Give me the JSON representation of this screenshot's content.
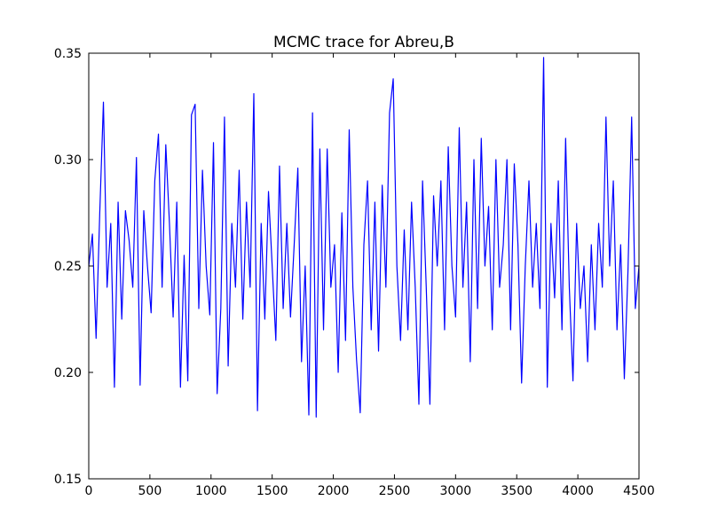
{
  "chart_data": {
    "type": "line",
    "title": "MCMC trace for Abreu,B",
    "x": [
      0,
      30,
      60,
      90,
      120,
      150,
      180,
      210,
      240,
      270,
      300,
      330,
      360,
      390,
      420,
      450,
      480,
      510,
      540,
      570,
      600,
      630,
      660,
      690,
      720,
      750,
      780,
      810,
      840,
      870,
      900,
      930,
      960,
      990,
      1020,
      1050,
      1080,
      1110,
      1140,
      1170,
      1200,
      1230,
      1260,
      1290,
      1320,
      1350,
      1380,
      1410,
      1440,
      1470,
      1500,
      1530,
      1560,
      1590,
      1620,
      1650,
      1680,
      1710,
      1740,
      1770,
      1800,
      1830,
      1860,
      1890,
      1920,
      1950,
      1980,
      2010,
      2040,
      2070,
      2100,
      2130,
      2160,
      2190,
      2220,
      2250,
      2280,
      2310,
      2340,
      2370,
      2400,
      2430,
      2460,
      2490,
      2520,
      2550,
      2580,
      2610,
      2640,
      2670,
      2700,
      2730,
      2760,
      2790,
      2820,
      2850,
      2880,
      2910,
      2940,
      2970,
      3000,
      3030,
      3060,
      3090,
      3120,
      3150,
      3180,
      3210,
      3240,
      3270,
      3300,
      3330,
      3360,
      3390,
      3420,
      3450,
      3480,
      3510,
      3540,
      3570,
      3600,
      3630,
      3660,
      3690,
      3720,
      3750,
      3780,
      3810,
      3840,
      3870,
      3900,
      3930,
      3960,
      3990,
      4020,
      4050,
      4080,
      4110,
      4140,
      4170,
      4200,
      4230,
      4260,
      4290,
      4320,
      4350,
      4380,
      4410,
      4440,
      4470,
      4500
    ],
    "values": [
      0.25,
      0.265,
      0.216,
      0.275,
      0.327,
      0.24,
      0.27,
      0.193,
      0.28,
      0.225,
      0.276,
      0.262,
      0.24,
      0.301,
      0.194,
      0.276,
      0.25,
      0.228,
      0.29,
      0.312,
      0.24,
      0.307,
      0.27,
      0.226,
      0.28,
      0.193,
      0.255,
      0.196,
      0.321,
      0.326,
      0.23,
      0.295,
      0.25,
      0.227,
      0.308,
      0.19,
      0.23,
      0.32,
      0.203,
      0.27,
      0.24,
      0.295,
      0.225,
      0.28,
      0.24,
      0.331,
      0.182,
      0.27,
      0.225,
      0.285,
      0.25,
      0.215,
      0.297,
      0.23,
      0.27,
      0.226,
      0.26,
      0.296,
      0.205,
      0.25,
      0.18,
      0.322,
      0.179,
      0.305,
      0.22,
      0.305,
      0.24,
      0.26,
      0.2,
      0.275,
      0.215,
      0.314,
      0.24,
      0.206,
      0.181,
      0.26,
      0.29,
      0.22,
      0.28,
      0.21,
      0.288,
      0.24,
      0.322,
      0.338,
      0.25,
      0.215,
      0.267,
      0.22,
      0.28,
      0.24,
      0.185,
      0.29,
      0.24,
      0.185,
      0.283,
      0.25,
      0.29,
      0.22,
      0.306,
      0.25,
      0.226,
      0.315,
      0.24,
      0.28,
      0.205,
      0.3,
      0.23,
      0.31,
      0.25,
      0.278,
      0.22,
      0.3,
      0.24,
      0.26,
      0.3,
      0.22,
      0.298,
      0.26,
      0.195,
      0.25,
      0.29,
      0.24,
      0.27,
      0.23,
      0.348,
      0.193,
      0.27,
      0.235,
      0.29,
      0.22,
      0.31,
      0.24,
      0.196,
      0.27,
      0.23,
      0.25,
      0.205,
      0.26,
      0.22,
      0.27,
      0.24,
      0.32,
      0.25,
      0.29,
      0.22,
      0.26,
      0.197,
      0.248,
      0.32,
      0.23,
      0.25
    ],
    "color": "#0000ff",
    "xlim": [
      0,
      4500
    ],
    "xticks": [
      0,
      500,
      1000,
      1500,
      2000,
      2500,
      3000,
      3500,
      4000,
      4500
    ],
    "ylim": [
      0.15,
      0.35
    ],
    "yticks": [
      0.15,
      {
        "value": 0.2,
        "label": "0.20"
      },
      0.25,
      {
        "value": 0.3,
        "label": "0.30"
      },
      0.35
    ]
  }
}
